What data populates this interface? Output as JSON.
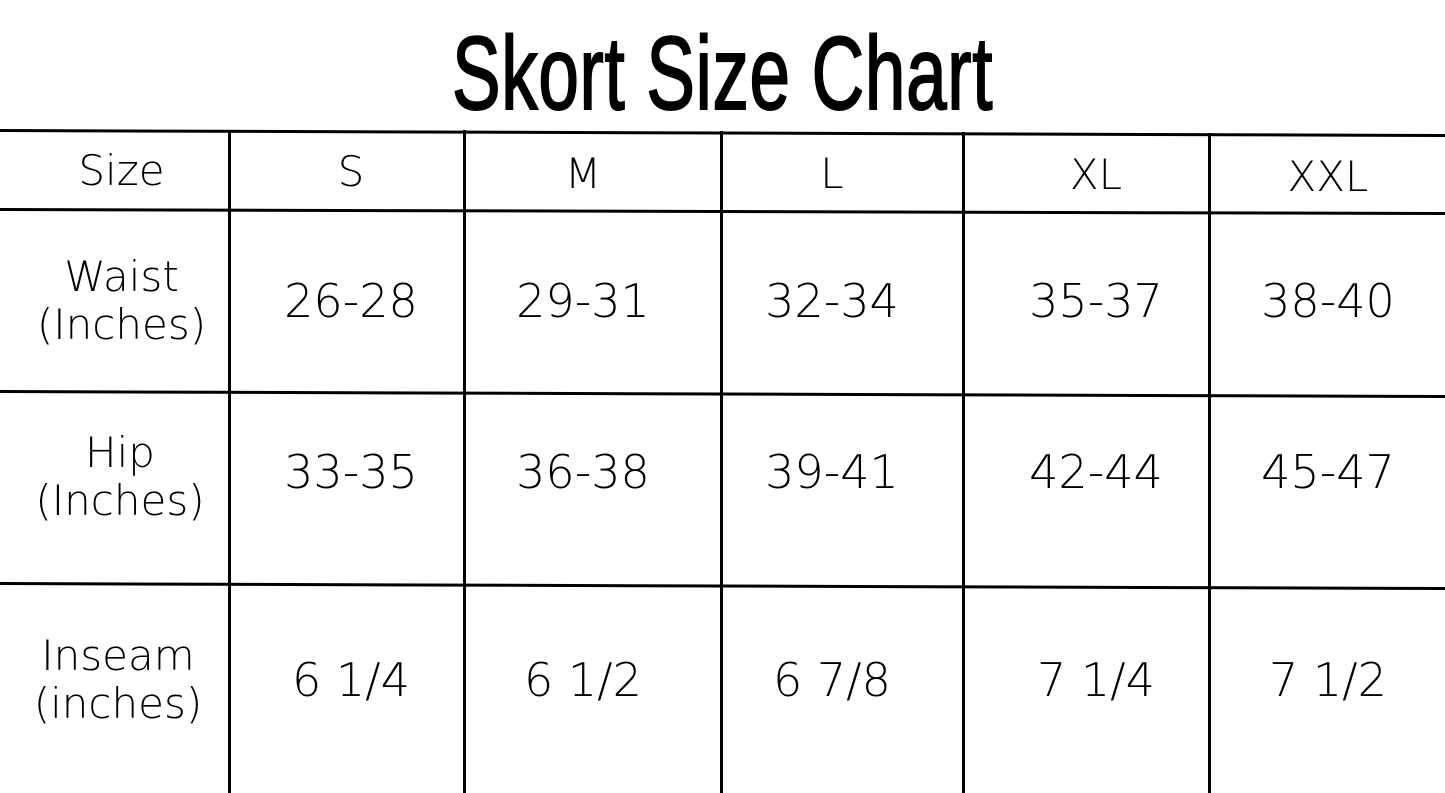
{
  "title": "Skort Size Chart",
  "table": {
    "header": [
      "Size",
      "S",
      "M",
      "L",
      "XL",
      "XXL"
    ],
    "rows": [
      {
        "label_line1": "Waist",
        "label_line2": "(Inches)",
        "values": [
          "26-28",
          "29-31",
          "32-34",
          "35-37",
          "38-40"
        ]
      },
      {
        "label_line1": "Hip",
        "label_line2": "(Inches)",
        "values": [
          "33-35",
          "36-38",
          "39-41",
          "42-44",
          "45-47"
        ]
      },
      {
        "label_line1": "Inseam",
        "label_line2": "(inches)",
        "values": [
          "6 1/4",
          "6 1/2",
          "6 7/8",
          "7 1/4",
          "7 1/2"
        ]
      }
    ]
  }
}
